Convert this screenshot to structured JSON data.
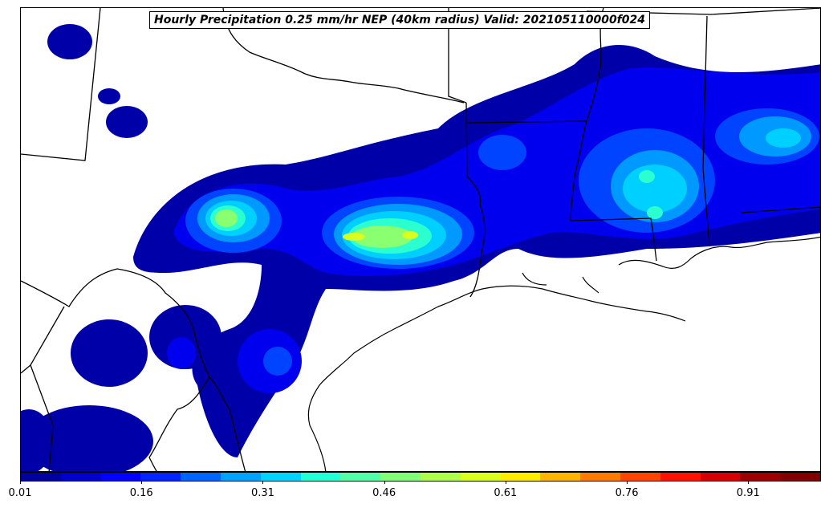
{
  "title": "Hourly Precipitation 0.25 mm/hr NEP (40km radius) Valid: 202105110000f024",
  "colorbar": {
    "min": 0.01,
    "max": 1.0,
    "tick_labels": [
      "0.01",
      "0.16",
      "0.31",
      "0.46",
      "0.61",
      "0.76",
      "0.91"
    ],
    "colors": [
      "#00009e",
      "#0000cd",
      "#0000ff",
      "#0026ff",
      "#0064ff",
      "#00a4ff",
      "#00d4ff",
      "#22ffd6",
      "#52ffa6",
      "#7fff77",
      "#acff4a",
      "#d8ff1e",
      "#ffea00",
      "#ffb400",
      "#ff7b00",
      "#ff4300",
      "#ff1200",
      "#d70000",
      "#9e0000",
      "#800000"
    ]
  },
  "legend_colors": {
    "background": "#ffffff",
    "boundaries": "#000000"
  }
}
